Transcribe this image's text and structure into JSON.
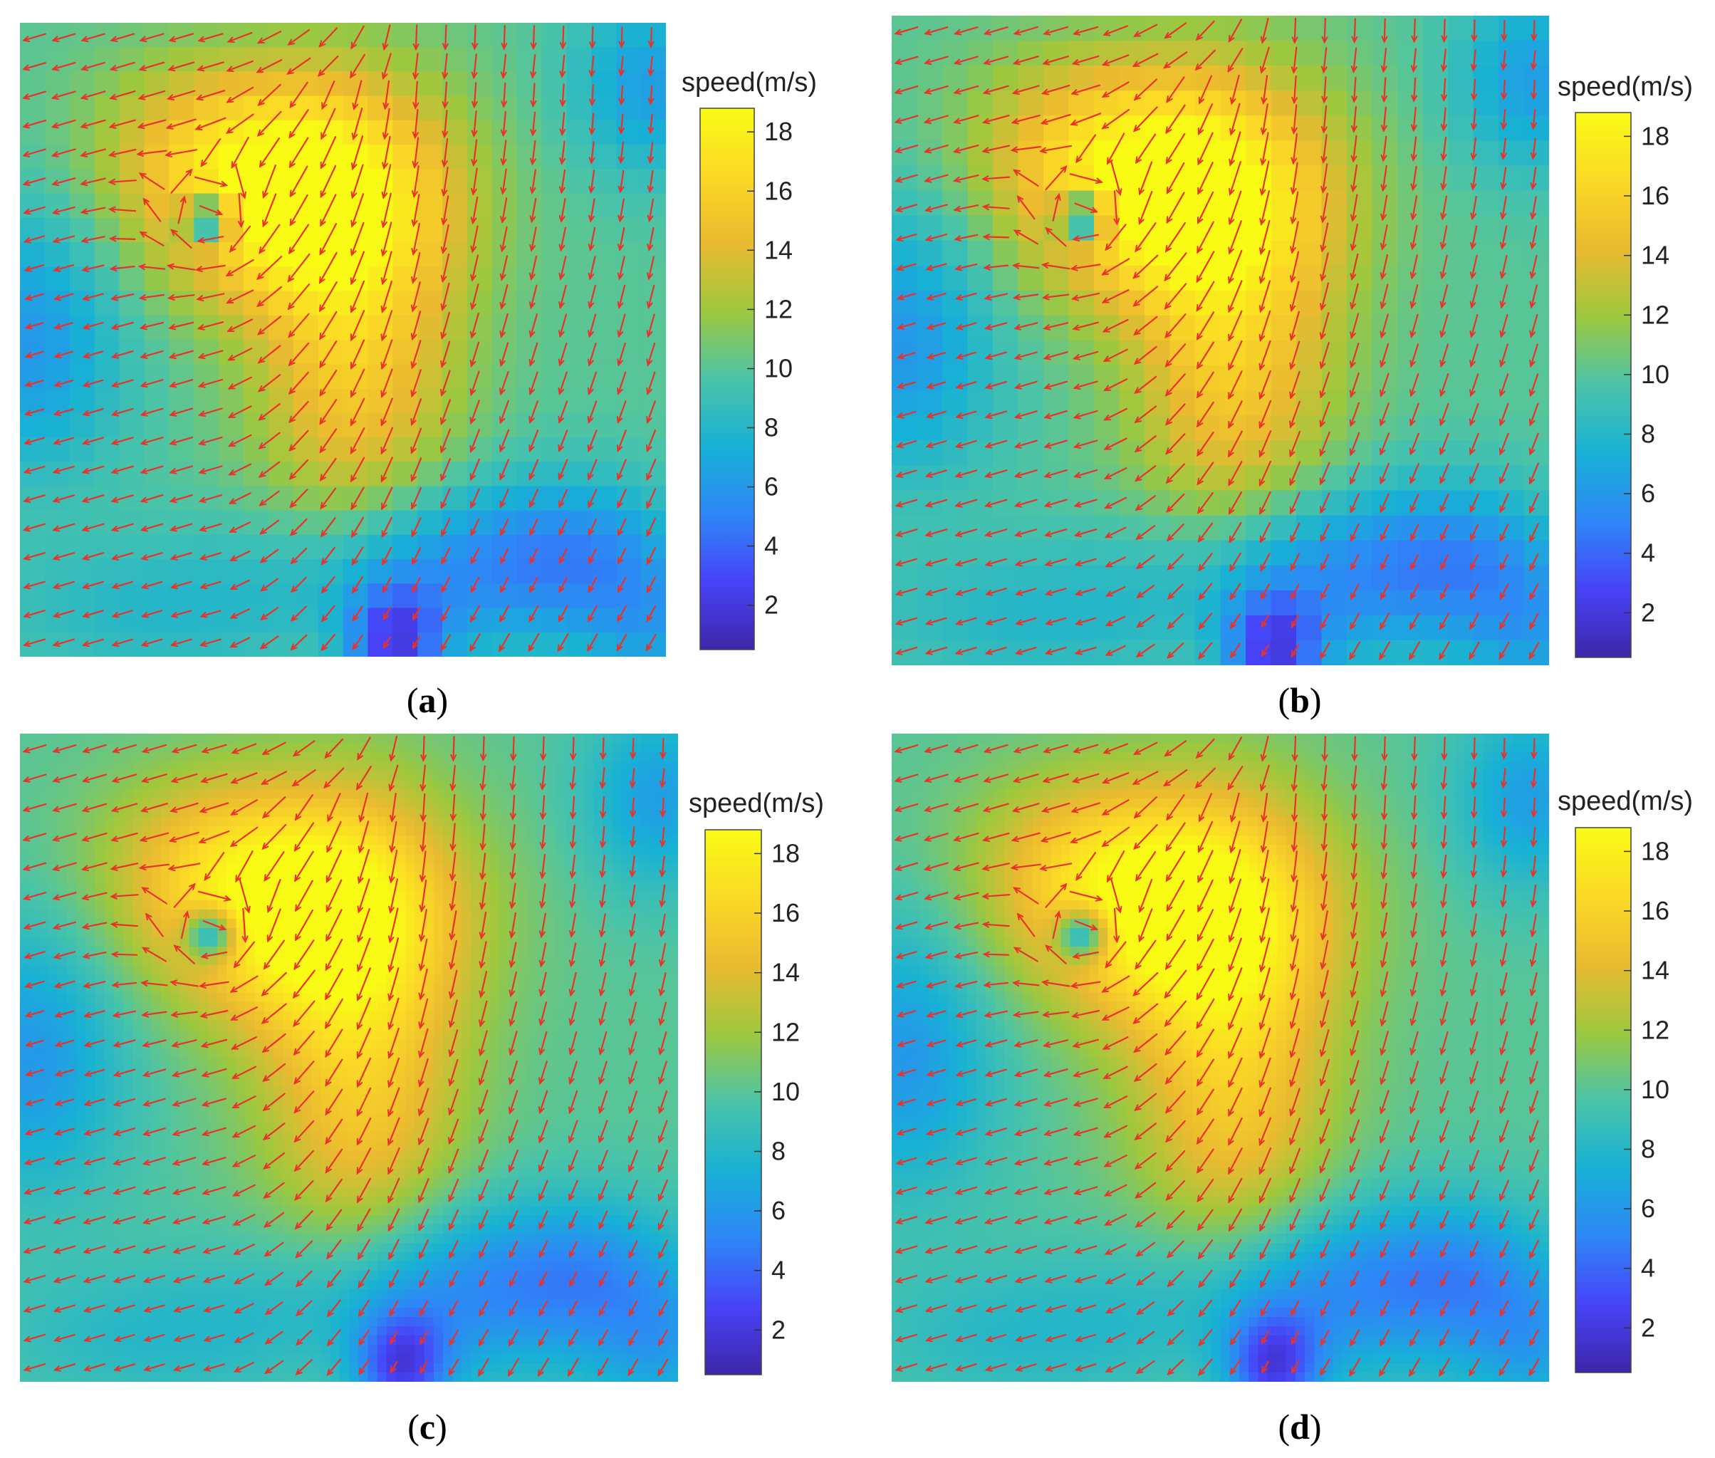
{
  "figure": {
    "panels": [
      {
        "label": "a",
        "caption_open": "(",
        "caption_close": ")",
        "render": "blocky"
      },
      {
        "label": "b",
        "caption_open": "(",
        "caption_close": ")",
        "render": "blocky"
      },
      {
        "label": "c",
        "caption_open": "(",
        "caption_close": ")",
        "render": "smooth"
      },
      {
        "label": "d",
        "caption_open": "(",
        "caption_close": ")",
        "render": "smooth"
      }
    ],
    "colormap": [
      "#3e26a8",
      "#4743f8",
      "#2e87f7",
      "#17b1d5",
      "#4bc4a8",
      "#9dc83e",
      "#eaba30",
      "#fbd926",
      "#f9fb15"
    ],
    "arrow_color": "#e8322a"
  },
  "chart_data": [
    {
      "type": "heatmap",
      "panel": "a",
      "colorbar_title": "speed(m/s)",
      "colorbar_ticks": [
        2,
        4,
        6,
        8,
        10,
        12,
        14,
        16,
        18
      ],
      "clim": [
        0.5,
        18.8
      ],
      "overlay": "velocity vectors (quiver)"
    },
    {
      "type": "heatmap",
      "panel": "b",
      "colorbar_title": "speed(m/s)",
      "colorbar_ticks": [
        2,
        4,
        6,
        8,
        10,
        12,
        14,
        16,
        18
      ],
      "clim": [
        0.5,
        18.8
      ],
      "overlay": "velocity vectors (quiver)"
    },
    {
      "type": "heatmap",
      "panel": "c",
      "colorbar_title": "speed(m/s)",
      "colorbar_ticks": [
        2,
        4,
        6,
        8,
        10,
        12,
        14,
        16,
        18
      ],
      "clim": [
        0.5,
        18.8
      ],
      "overlay": "velocity vectors (quiver)"
    },
    {
      "type": "heatmap",
      "panel": "d",
      "colorbar_title": "speed(m/s)",
      "colorbar_ticks": [
        2,
        4,
        6,
        8,
        10,
        12,
        14,
        16,
        18
      ],
      "clim": [
        0.5,
        18.8
      ],
      "overlay": "velocity vectors (quiver)"
    }
  ]
}
